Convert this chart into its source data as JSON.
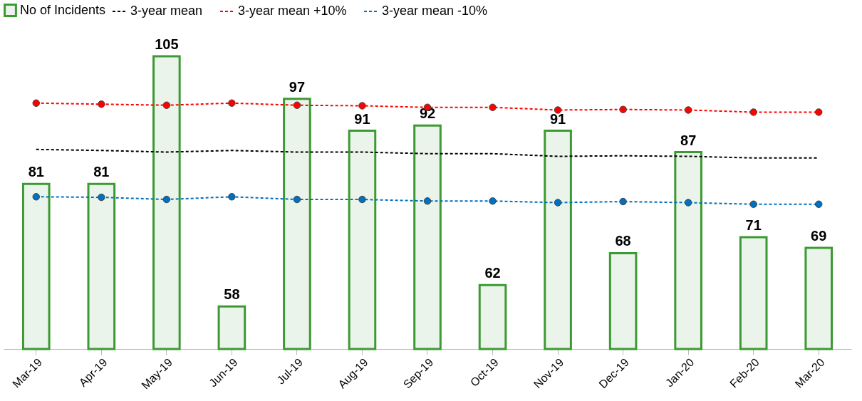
{
  "chart_data": {
    "type": "bar",
    "categories": [
      "Mar-19",
      "Apr-19",
      "May-19",
      "Jun-19",
      "Jul-19",
      "Aug-19",
      "Sep-19",
      "Oct-19",
      "Nov-19",
      "Dec-19",
      "Jan-20",
      "Feb-20",
      "Mar-20"
    ],
    "ylim": [
      50,
      105
    ],
    "tick_labels": "x",
    "grid": false,
    "legend": "top",
    "line_style": "dashed",
    "series": [
      {
        "name": "No of Incidents",
        "color": "#3c9a32",
        "data_labels": true,
        "values": [
          81,
          81,
          105,
          58,
          97,
          91,
          92,
          62,
          91,
          68,
          87,
          71,
          69
        ]
      },
      {
        "name": "3-year mean",
        "type": "line",
        "color": "#000000",
        "marker": "none",
        "values": [
          87.5,
          87.3,
          87.0,
          87.3,
          87.0,
          87.0,
          86.7,
          86.7,
          86.2,
          86.3,
          86.2,
          85.9,
          85.9
        ]
      },
      {
        "name": "3-year mean +10%",
        "type": "line",
        "color": "#ff0000",
        "marker": "circle",
        "values": [
          96.2,
          96.0,
          95.8,
          96.2,
          95.8,
          95.7,
          95.4,
          95.4,
          94.9,
          95.0,
          94.9,
          94.5,
          94.5
        ]
      },
      {
        "name": "3-year mean -10%",
        "type": "line",
        "color": "#0070c0",
        "marker": "circle",
        "values": [
          78.6,
          78.5,
          78.1,
          78.6,
          78.1,
          78.1,
          77.8,
          77.8,
          77.5,
          77.7,
          77.5,
          77.2,
          77.2
        ]
      }
    ]
  }
}
